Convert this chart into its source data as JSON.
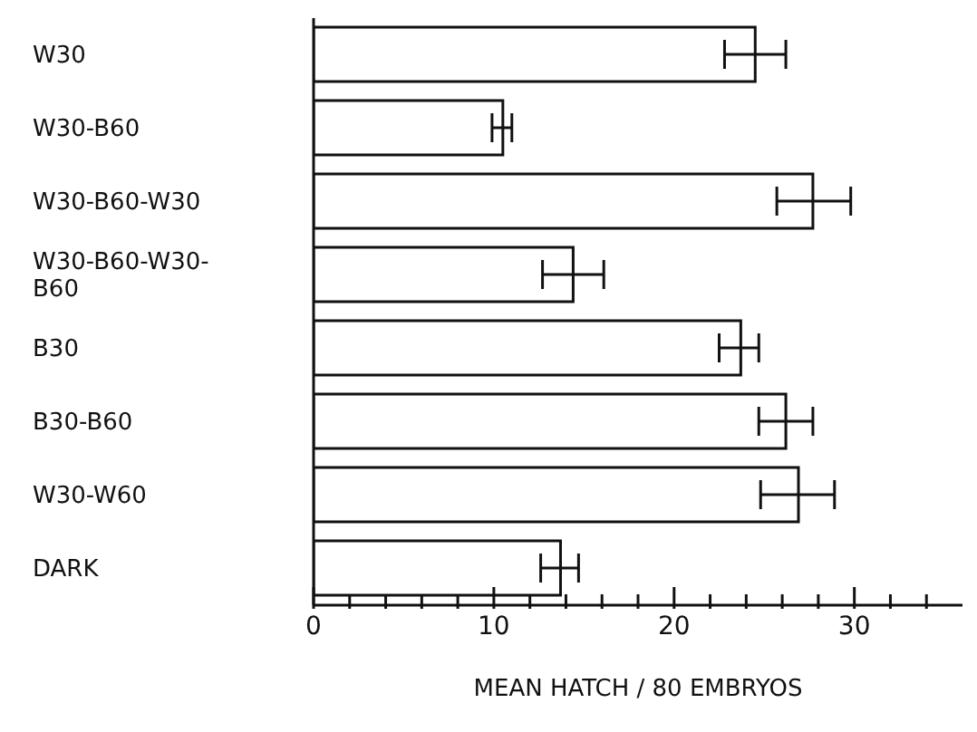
{
  "chart_data": {
    "type": "bar",
    "orientation": "horizontal",
    "xlabel": "MEAN HATCH / 80 EMBRYOS",
    "categories": [
      "W30",
      "W30-B60",
      "W30-B60-W30",
      "W30-B60-W30-B60",
      "B30",
      "B30-B60",
      "W30-W60",
      "DARK"
    ],
    "values": [
      24.5,
      10.5,
      27.7,
      14.4,
      23.7,
      26.2,
      26.9,
      13.7
    ],
    "errors": [
      [
        22.8,
        26.2
      ],
      [
        9.9,
        11.0
      ],
      [
        25.7,
        29.8
      ],
      [
        12.7,
        16.1
      ],
      [
        22.5,
        24.7
      ],
      [
        24.7,
        27.7
      ],
      [
        24.8,
        28.9
      ],
      [
        12.6,
        14.7
      ]
    ],
    "color": "#ffffff",
    "xlim": [
      0,
      36
    ],
    "xticks": [
      0,
      {
        "value": 2,
        "label": null
      },
      {
        "value": 4,
        "label": null
      },
      {
        "value": 6,
        "label": null
      },
      {
        "value": 8,
        "label": null
      },
      10,
      {
        "value": 12,
        "label": null
      },
      {
        "value": 14,
        "label": null
      },
      {
        "value": 16,
        "label": null
      },
      {
        "value": 18,
        "label": null
      },
      20,
      {
        "value": 22,
        "label": null
      },
      {
        "value": 24,
        "label": null
      },
      {
        "value": 26,
        "label": null
      },
      {
        "value": 28,
        "label": null
      },
      30,
      {
        "value": 32,
        "label": null
      },
      {
        "value": 34,
        "label": null
      }
    ],
    "grid": false,
    "legend": false
  }
}
